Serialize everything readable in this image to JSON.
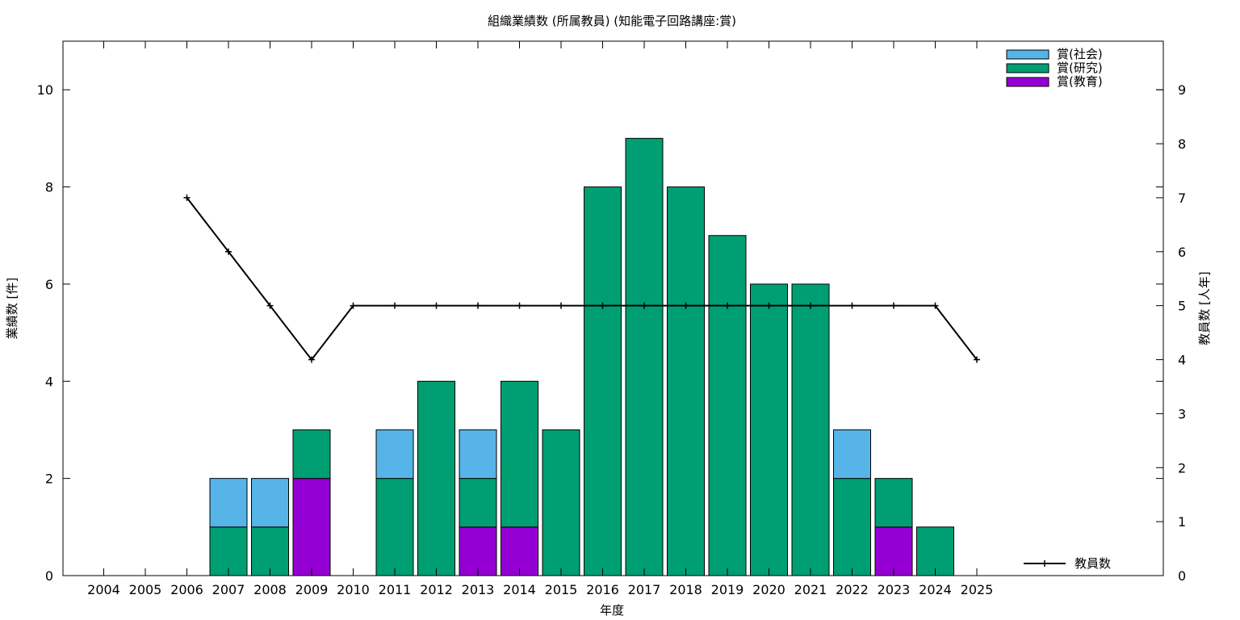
{
  "chart_data": {
    "type": "bar",
    "stacked": true,
    "title": "組織業績数 (所属教員) (知能電子回路講座:賞)",
    "xlabel": "年度",
    "ylabel": "業績数 [件]",
    "y2label": "教員数 [人年]",
    "ylim": [
      0,
      11
    ],
    "y2lim": [
      0,
      9.9
    ],
    "yticks": [
      0,
      2,
      4,
      6,
      8,
      10
    ],
    "y2ticks": [
      0,
      1,
      2,
      3,
      4,
      5,
      6,
      7,
      8,
      9
    ],
    "categories": [
      "2004",
      "2005",
      "2006",
      "2007",
      "2008",
      "2009",
      "2010",
      "2011",
      "2012",
      "2013",
      "2014",
      "2015",
      "2016",
      "2017",
      "2018",
      "2019",
      "2020",
      "2021",
      "2022",
      "2023",
      "2024",
      "2025"
    ],
    "series": [
      {
        "name": "賞(教育)",
        "color": "#9400d3",
        "values": [
          0,
          0,
          0,
          0,
          0,
          2,
          0,
          0,
          0,
          1,
          1,
          0,
          0,
          0,
          0,
          0,
          0,
          0,
          0,
          1,
          0,
          0
        ]
      },
      {
        "name": "賞(研究)",
        "color": "#009e73",
        "values": [
          0,
          0,
          0,
          1,
          1,
          1,
          0,
          2,
          4,
          1,
          3,
          3,
          8,
          9,
          8,
          7,
          6,
          6,
          2,
          1,
          1,
          0
        ]
      },
      {
        "name": "賞(社会)",
        "color": "#56b4e9",
        "values": [
          0,
          0,
          0,
          1,
          1,
          0,
          0,
          1,
          0,
          1,
          0,
          0,
          0,
          0,
          0,
          0,
          0,
          0,
          1,
          0,
          0,
          0
        ]
      }
    ],
    "legend_order": [
      "賞(社会)",
      "賞(研究)",
      "賞(教育)"
    ],
    "legend_placement": "top-right",
    "line_series": {
      "name": "教員数",
      "axis": "y2",
      "color": "#000000",
      "legend_placement": "bottom-right",
      "points": [
        {
          "x": "2006",
          "y": 7
        },
        {
          "x": "2007",
          "y": 6
        },
        {
          "x": "2008",
          "y": 5
        },
        {
          "x": "2009",
          "y": 4
        },
        {
          "x": "2010",
          "y": 5
        },
        {
          "x": "2011",
          "y": 5
        },
        {
          "x": "2012",
          "y": 5
        },
        {
          "x": "2013",
          "y": 5
        },
        {
          "x": "2014",
          "y": 5
        },
        {
          "x": "2015",
          "y": 5
        },
        {
          "x": "2016",
          "y": 5
        },
        {
          "x": "2017",
          "y": 5
        },
        {
          "x": "2018",
          "y": 5
        },
        {
          "x": "2019",
          "y": 5
        },
        {
          "x": "2020",
          "y": 5
        },
        {
          "x": "2021",
          "y": 5
        },
        {
          "x": "2022",
          "y": 5
        },
        {
          "x": "2023",
          "y": 5
        },
        {
          "x": "2024",
          "y": 5
        },
        {
          "x": "2025",
          "y": 4
        }
      ]
    },
    "grid": false
  }
}
